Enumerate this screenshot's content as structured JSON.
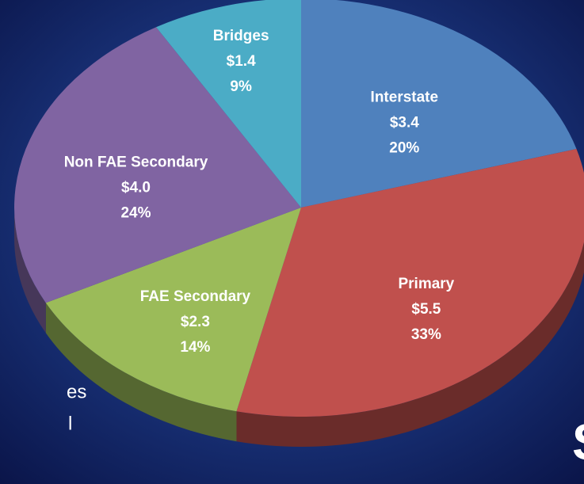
{
  "chart_data": {
    "type": "pie",
    "categories": [
      "Interstate",
      "Primary",
      "FAE Secondary",
      "Non FAE Secondary",
      "Bridges"
    ],
    "values": [
      3.4,
      5.5,
      2.3,
      4.0,
      1.4
    ],
    "value_labels": [
      "$3.4",
      "$5.5",
      "$2.3",
      "$4.0",
      "$1.4"
    ],
    "percentages": [
      20,
      33,
      14,
      24,
      9
    ],
    "percentage_labels": [
      "20%",
      "33%",
      "14%",
      "24%",
      "9%"
    ],
    "colors": [
      "#4f81bd",
      "#c0504d",
      "#9bbb59",
      "#8064a2",
      "#4bacc6"
    ],
    "annotations": [
      "es",
      "l",
      "S"
    ]
  }
}
